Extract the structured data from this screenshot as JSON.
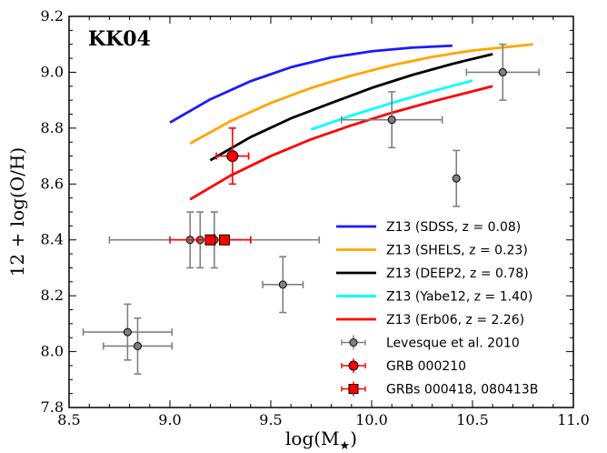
{
  "chart_data": {
    "type": "scatter",
    "annotation": "KK04",
    "xlabel": "log(M",
    "xlabel_sub": "★",
    "xlabel_close": ")",
    "ylabel": "12 + log(O/H)",
    "xlim": [
      8.5,
      11.0
    ],
    "ylim": [
      7.8,
      9.2
    ],
    "x_ticks": [
      "8.5",
      "9.0",
      "9.5",
      "10.0",
      "10.5",
      "11.0"
    ],
    "y_ticks": [
      "7.8",
      "8.0",
      "8.2",
      "8.4",
      "8.6",
      "8.8",
      "9.0",
      "9.2"
    ],
    "grid": false,
    "legend_position": "lower-right",
    "lines": [
      {
        "name": "Z13 (SDSS, z = 0.08)",
        "color": "#1a1aff",
        "x": [
          9.0,
          9.2,
          9.4,
          9.6,
          9.8,
          10.0,
          10.2,
          10.4
        ],
        "y": [
          8.82,
          8.903,
          8.968,
          9.018,
          9.053,
          9.075,
          9.088,
          9.095
        ]
      },
      {
        "name": "Z13 (SHELS, z = 0.23)",
        "color": "#ffa500",
        "x": [
          9.1,
          9.3,
          9.5,
          9.7,
          9.9,
          10.1,
          10.3,
          10.5,
          10.8
        ],
        "y": [
          8.745,
          8.825,
          8.89,
          8.944,
          8.988,
          9.025,
          9.055,
          9.078,
          9.1
        ]
      },
      {
        "name": "Z13 (DEEP2, z = 0.78)",
        "color": "#000000",
        "x": [
          9.2,
          9.4,
          9.6,
          9.8,
          10.0,
          10.2,
          10.4,
          10.6
        ],
        "y": [
          8.685,
          8.768,
          8.835,
          8.89,
          8.944,
          8.99,
          9.03,
          9.065
        ]
      },
      {
        "name": "Z13 (Yabe12, z = 1.40)",
        "color": "#00ffff",
        "x": [
          9.7,
          9.9,
          10.1,
          10.3,
          10.5
        ],
        "y": [
          8.795,
          8.845,
          8.89,
          8.932,
          8.97
        ]
      },
      {
        "name": "Z13 (Erb06, z = 2.26)",
        "color": "#ff0000",
        "x": [
          9.1,
          9.3,
          9.5,
          9.7,
          9.9,
          10.1,
          10.3,
          10.6
        ],
        "y": [
          8.545,
          8.63,
          8.7,
          8.76,
          8.81,
          8.855,
          8.895,
          8.95
        ]
      }
    ],
    "point_series": [
      {
        "name": "Levesque et al. 2010",
        "marker": "circle",
        "fill": "#808080",
        "errcolor": "#808080",
        "points": [
          {
            "x": 10.65,
            "y": 9.0,
            "xerr": 0.18,
            "yerr": 0.1
          },
          {
            "x": 10.1,
            "y": 8.83,
            "xerr": 0.25,
            "yerr": 0.1
          },
          {
            "x": 10.42,
            "y": 8.62,
            "xerr": 0.0,
            "yerr": 0.1
          },
          {
            "x": 9.1,
            "y": 8.4,
            "xerr": 0.0,
            "yerr": 0.1
          },
          {
            "x": 9.15,
            "y": 8.4,
            "xerr": 0.0,
            "yerr": 0.1
          },
          {
            "x": 9.22,
            "y": 8.4,
            "xerr": 0.52,
            "yerr": 0.1
          },
          {
            "x": 9.56,
            "y": 8.24,
            "xerr": 0.1,
            "yerr": 0.1
          },
          {
            "x": 8.79,
            "y": 8.07,
            "xerr": 0.22,
            "yerr": 0.1
          },
          {
            "x": 8.84,
            "y": 8.02,
            "xerr": 0.17,
            "yerr": 0.1
          }
        ]
      },
      {
        "name": "GRB 000210",
        "marker": "circle",
        "fill": "#ff0000",
        "errcolor": "#ff0000",
        "points": [
          {
            "x": 9.31,
            "y": 8.7,
            "xerr": 0.08,
            "yerr": 0.1
          }
        ]
      },
      {
        "name": "GRBs 000418, 080413B",
        "marker": "square",
        "fill": "#ff0000",
        "errcolor": "#ff0000",
        "points": [
          {
            "x": 9.2,
            "y": 8.4,
            "xerr": 0.2,
            "yerr": 0.0
          },
          {
            "x": 9.27,
            "y": 8.4,
            "xerr": 0.13,
            "yerr": 0.0
          }
        ]
      }
    ]
  }
}
